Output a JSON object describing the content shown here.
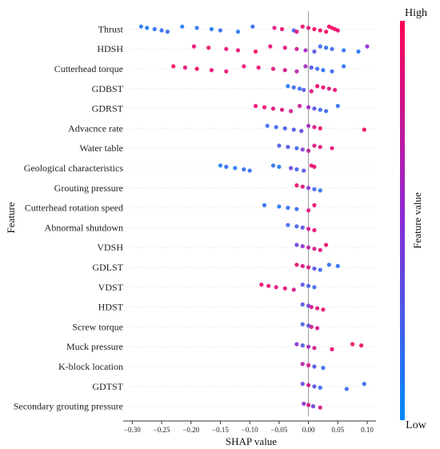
{
  "chart_data": {
    "type": "scatter",
    "subtype": "shap-beeswarm",
    "title": "",
    "xlabel": "SHAP value",
    "ylabel": "Feature",
    "xlim": [
      -0.31,
      0.115
    ],
    "xticks": [
      -0.3,
      -0.25,
      -0.2,
      -0.15,
      -0.1,
      -0.05,
      0.0,
      0.05,
      0.1
    ],
    "xtick_labels": [
      "−0.30",
      "−0.25",
      "−0.20",
      "−0.15",
      "−0.10",
      "−0.05",
      "0.00",
      "0.05",
      "0.10"
    ],
    "grid": false,
    "colorbar": {
      "label": "Feature value",
      "high_label": "High",
      "low_label": "Low",
      "high_color": "#ff0052",
      "mid_color": "#8a2bd6",
      "low_color": "#008bfb"
    },
    "features": [
      {
        "name": "Thrust",
        "points": [
          {
            "x": -0.285,
            "c": 0.1
          },
          {
            "x": -0.275,
            "c": 0.1
          },
          {
            "x": -0.262,
            "c": 0.15
          },
          {
            "x": -0.25,
            "c": 0.15
          },
          {
            "x": -0.24,
            "c": 0.2
          },
          {
            "x": -0.215,
            "c": 0.1
          },
          {
            "x": -0.19,
            "c": 0.15
          },
          {
            "x": -0.165,
            "c": 0.1
          },
          {
            "x": -0.15,
            "c": 0.15
          },
          {
            "x": -0.12,
            "c": 0.1
          },
          {
            "x": -0.095,
            "c": 0.2
          },
          {
            "x": -0.058,
            "c": 0.85
          },
          {
            "x": -0.045,
            "c": 0.9
          },
          {
            "x": -0.025,
            "c": 0.25
          },
          {
            "x": -0.02,
            "c": 0.85
          },
          {
            "x": -0.01,
            "c": 0.9
          },
          {
            "x": 0.0,
            "c": 0.9
          },
          {
            "x": 0.01,
            "c": 0.95
          },
          {
            "x": 0.02,
            "c": 0.95
          },
          {
            "x": 0.03,
            "c": 0.95
          },
          {
            "x": 0.035,
            "c": 0.95
          },
          {
            "x": 0.04,
            "c": 0.95
          },
          {
            "x": 0.045,
            "c": 0.95
          },
          {
            "x": 0.05,
            "c": 0.9
          }
        ]
      },
      {
        "name": "HDSH",
        "points": [
          {
            "x": -0.195,
            "c": 0.9
          },
          {
            "x": -0.17,
            "c": 0.9
          },
          {
            "x": -0.14,
            "c": 0.9
          },
          {
            "x": -0.12,
            "c": 0.9
          },
          {
            "x": -0.09,
            "c": 0.95
          },
          {
            "x": -0.065,
            "c": 0.9
          },
          {
            "x": -0.04,
            "c": 0.85
          },
          {
            "x": -0.02,
            "c": 0.8
          },
          {
            "x": -0.005,
            "c": 0.6
          },
          {
            "x": 0.01,
            "c": 0.3
          },
          {
            "x": 0.02,
            "c": 0.2
          },
          {
            "x": 0.03,
            "c": 0.15
          },
          {
            "x": 0.04,
            "c": 0.2
          },
          {
            "x": 0.06,
            "c": 0.15
          },
          {
            "x": 0.085,
            "c": 0.1
          },
          {
            "x": 0.1,
            "c": 0.5
          }
        ]
      },
      {
        "name": "Cutterhead torque",
        "points": [
          {
            "x": -0.23,
            "c": 0.95
          },
          {
            "x": -0.21,
            "c": 0.9
          },
          {
            "x": -0.19,
            "c": 0.95
          },
          {
            "x": -0.165,
            "c": 0.9
          },
          {
            "x": -0.14,
            "c": 0.9
          },
          {
            "x": -0.11,
            "c": 0.9
          },
          {
            "x": -0.085,
            "c": 0.9
          },
          {
            "x": -0.06,
            "c": 0.85
          },
          {
            "x": -0.04,
            "c": 0.8
          },
          {
            "x": -0.02,
            "c": 0.7
          },
          {
            "x": -0.005,
            "c": 0.6
          },
          {
            "x": 0.005,
            "c": 0.3
          },
          {
            "x": 0.015,
            "c": 0.2
          },
          {
            "x": 0.025,
            "c": 0.15
          },
          {
            "x": 0.04,
            "c": 0.2
          },
          {
            "x": 0.06,
            "c": 0.15
          }
        ]
      },
      {
        "name": "GDBST",
        "points": [
          {
            "x": -0.035,
            "c": 0.1
          },
          {
            "x": -0.025,
            "c": 0.2
          },
          {
            "x": -0.015,
            "c": 0.15
          },
          {
            "x": -0.008,
            "c": 0.3
          },
          {
            "x": 0.005,
            "c": 0.85
          },
          {
            "x": 0.015,
            "c": 0.9
          },
          {
            "x": 0.025,
            "c": 0.9
          },
          {
            "x": 0.035,
            "c": 0.85
          },
          {
            "x": 0.045,
            "c": 0.9
          }
        ]
      },
      {
        "name": "GDRST",
        "points": [
          {
            "x": -0.09,
            "c": 0.9
          },
          {
            "x": -0.075,
            "c": 0.9
          },
          {
            "x": -0.06,
            "c": 0.85
          },
          {
            "x": -0.045,
            "c": 0.85
          },
          {
            "x": -0.03,
            "c": 0.8
          },
          {
            "x": -0.015,
            "c": 0.75
          },
          {
            "x": 0.0,
            "c": 0.6
          },
          {
            "x": 0.01,
            "c": 0.3
          },
          {
            "x": 0.02,
            "c": 0.2
          },
          {
            "x": 0.03,
            "c": 0.2
          },
          {
            "x": 0.05,
            "c": 0.15
          }
        ]
      },
      {
        "name": "Advacnce rate",
        "points": [
          {
            "x": -0.07,
            "c": 0.2
          },
          {
            "x": -0.055,
            "c": 0.2
          },
          {
            "x": -0.04,
            "c": 0.25
          },
          {
            "x": -0.025,
            "c": 0.3
          },
          {
            "x": -0.012,
            "c": 0.35
          },
          {
            "x": 0.0,
            "c": 0.6
          },
          {
            "x": 0.01,
            "c": 0.85
          },
          {
            "x": 0.02,
            "c": 0.9
          },
          {
            "x": 0.095,
            "c": 0.95
          }
        ]
      },
      {
        "name": "Water table",
        "points": [
          {
            "x": -0.05,
            "c": 0.25
          },
          {
            "x": -0.035,
            "c": 0.3
          },
          {
            "x": -0.02,
            "c": 0.2
          },
          {
            "x": -0.01,
            "c": 0.45
          },
          {
            "x": 0.0,
            "c": 0.7
          },
          {
            "x": 0.01,
            "c": 0.85
          },
          {
            "x": 0.02,
            "c": 0.85
          },
          {
            "x": 0.04,
            "c": 0.9
          }
        ]
      },
      {
        "name": "Geological characteristics",
        "points": [
          {
            "x": -0.15,
            "c": 0.1
          },
          {
            "x": -0.14,
            "c": 0.15
          },
          {
            "x": -0.125,
            "c": 0.1
          },
          {
            "x": -0.11,
            "c": 0.15
          },
          {
            "x": -0.1,
            "c": 0.15
          },
          {
            "x": -0.06,
            "c": 0.15
          },
          {
            "x": -0.05,
            "c": 0.1
          },
          {
            "x": -0.03,
            "c": 0.4
          },
          {
            "x": -0.02,
            "c": 0.2
          },
          {
            "x": -0.008,
            "c": 0.3
          },
          {
            "x": 0.005,
            "c": 0.9
          },
          {
            "x": 0.01,
            "c": 0.9
          }
        ]
      },
      {
        "name": "Grouting pressure",
        "points": [
          {
            "x": -0.02,
            "c": 0.9
          },
          {
            "x": -0.01,
            "c": 0.85
          },
          {
            "x": 0.0,
            "c": 0.5
          },
          {
            "x": 0.01,
            "c": 0.2
          },
          {
            "x": 0.02,
            "c": 0.15
          }
        ]
      },
      {
        "name": "Cutterhead rotation speed",
        "points": [
          {
            "x": -0.075,
            "c": 0.15
          },
          {
            "x": -0.05,
            "c": 0.1
          },
          {
            "x": -0.035,
            "c": 0.15
          },
          {
            "x": -0.02,
            "c": 0.2
          },
          {
            "x": 0.0,
            "c": 0.85
          },
          {
            "x": 0.01,
            "c": 0.9
          }
        ]
      },
      {
        "name": "Abnormal shutdown",
        "points": [
          {
            "x": -0.035,
            "c": 0.2
          },
          {
            "x": -0.02,
            "c": 0.25
          },
          {
            "x": -0.01,
            "c": 0.3
          },
          {
            "x": 0.0,
            "c": 0.8
          },
          {
            "x": 0.01,
            "c": 0.9
          }
        ]
      },
      {
        "name": "VDSH",
        "points": [
          {
            "x": -0.02,
            "c": 0.4
          },
          {
            "x": -0.01,
            "c": 0.5
          },
          {
            "x": 0.0,
            "c": 0.7
          },
          {
            "x": 0.01,
            "c": 0.8
          },
          {
            "x": 0.02,
            "c": 0.85
          },
          {
            "x": 0.03,
            "c": 0.9
          }
        ]
      },
      {
        "name": "GDLST",
        "points": [
          {
            "x": -0.02,
            "c": 0.9
          },
          {
            "x": -0.01,
            "c": 0.85
          },
          {
            "x": 0.0,
            "c": 0.8
          },
          {
            "x": 0.01,
            "c": 0.3
          },
          {
            "x": 0.02,
            "c": 0.2
          },
          {
            "x": 0.035,
            "c": 0.15
          },
          {
            "x": 0.05,
            "c": 0.15
          }
        ]
      },
      {
        "name": "VDST",
        "points": [
          {
            "x": -0.08,
            "c": 0.9
          },
          {
            "x": -0.068,
            "c": 0.9
          },
          {
            "x": -0.055,
            "c": 0.85
          },
          {
            "x": -0.04,
            "c": 0.85
          },
          {
            "x": -0.025,
            "c": 0.8
          },
          {
            "x": -0.01,
            "c": 0.3
          },
          {
            "x": 0.0,
            "c": 0.25
          },
          {
            "x": 0.01,
            "c": 0.2
          }
        ]
      },
      {
        "name": "HDST",
        "points": [
          {
            "x": -0.01,
            "c": 0.3
          },
          {
            "x": 0.0,
            "c": 0.4
          },
          {
            "x": 0.005,
            "c": 0.8
          },
          {
            "x": 0.015,
            "c": 0.85
          },
          {
            "x": 0.025,
            "c": 0.9
          }
        ]
      },
      {
        "name": "Screw torque",
        "points": [
          {
            "x": -0.01,
            "c": 0.25
          },
          {
            "x": 0.0,
            "c": 0.3
          },
          {
            "x": 0.005,
            "c": 0.75
          },
          {
            "x": 0.015,
            "c": 0.8
          }
        ]
      },
      {
        "name": "Muck pressure",
        "points": [
          {
            "x": -0.02,
            "c": 0.5
          },
          {
            "x": -0.01,
            "c": 0.3
          },
          {
            "x": 0.0,
            "c": 0.6
          },
          {
            "x": 0.01,
            "c": 0.8
          },
          {
            "x": 0.04,
            "c": 0.9
          },
          {
            "x": 0.075,
            "c": 0.9
          },
          {
            "x": 0.09,
            "c": 0.95
          }
        ]
      },
      {
        "name": "K-block location",
        "points": [
          {
            "x": -0.01,
            "c": 0.7
          },
          {
            "x": 0.0,
            "c": 0.8
          },
          {
            "x": 0.01,
            "c": 0.3
          },
          {
            "x": 0.025,
            "c": 0.2
          }
        ]
      },
      {
        "name": "GDTST",
        "points": [
          {
            "x": -0.01,
            "c": 0.4
          },
          {
            "x": 0.0,
            "c": 0.8
          },
          {
            "x": 0.01,
            "c": 0.3
          },
          {
            "x": 0.02,
            "c": 0.2
          },
          {
            "x": 0.065,
            "c": 0.2
          },
          {
            "x": 0.095,
            "c": 0.15
          }
        ]
      },
      {
        "name": "Secondary grouting pressure",
        "points": [
          {
            "x": -0.008,
            "c": 0.5
          },
          {
            "x": 0.0,
            "c": 0.8
          },
          {
            "x": 0.008,
            "c": 0.4
          },
          {
            "x": 0.02,
            "c": 0.85
          }
        ]
      }
    ]
  }
}
